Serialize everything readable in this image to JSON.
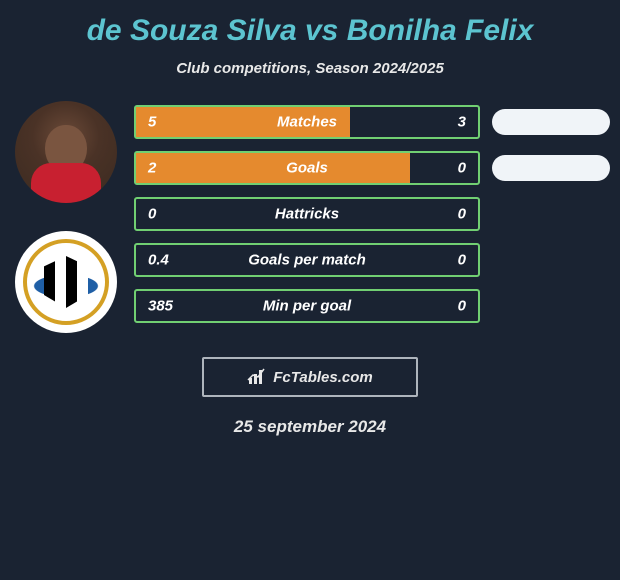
{
  "title": "de Souza Silva vs Bonilha Felix",
  "subtitle": "Club competitions, Season 2024/2025",
  "date": "25 september 2024",
  "footer_label": "FcTables.com",
  "colors": {
    "background": "#1a2332",
    "title": "#5cc4d0",
    "bar_border": "#71cf72",
    "bar_fill_left": "#e58a2e",
    "pill": "#f0f4f8",
    "footer_border": "#aeb4bc"
  },
  "pills": [
    {
      "show": true
    },
    {
      "show": true
    }
  ],
  "stats": [
    {
      "label": "Matches",
      "left_value": "5",
      "right_value": "3",
      "left_pct": 62.5,
      "right_pct": 0,
      "border_color": "#71cf72",
      "left_fill": "#e58a2e",
      "right_fill": "transparent"
    },
    {
      "label": "Goals",
      "left_value": "2",
      "right_value": "0",
      "left_pct": 80,
      "right_pct": 0,
      "border_color": "#71cf72",
      "left_fill": "#e58a2e",
      "right_fill": "transparent"
    },
    {
      "label": "Hattricks",
      "left_value": "0",
      "right_value": "0",
      "left_pct": 0,
      "right_pct": 0,
      "border_color": "#71cf72",
      "left_fill": "#e58a2e",
      "right_fill": "transparent"
    },
    {
      "label": "Goals per match",
      "left_value": "0.4",
      "right_value": "0",
      "left_pct": 0,
      "right_pct": 0,
      "border_color": "#71cf72",
      "left_fill": "#e58a2e",
      "right_fill": "transparent"
    },
    {
      "label": "Min per goal",
      "left_value": "385",
      "right_value": "0",
      "left_pct": 0,
      "right_pct": 0,
      "border_color": "#71cf72",
      "left_fill": "#e58a2e",
      "right_fill": "transparent"
    }
  ]
}
